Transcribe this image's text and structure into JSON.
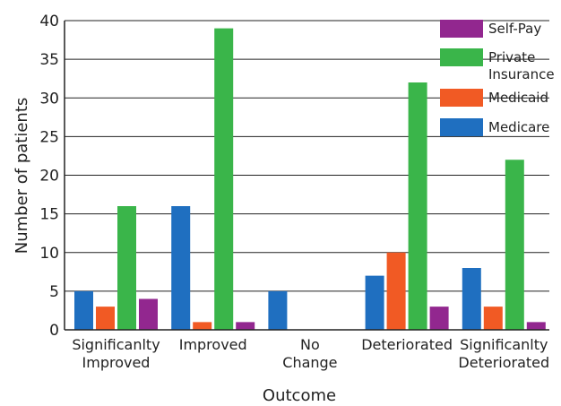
{
  "chart_data": {
    "type": "bar",
    "title": "",
    "xlabel": "Outcome",
    "ylabel": "Number of patients",
    "ylim": [
      0,
      40
    ],
    "yticks": [
      0,
      5,
      10,
      15,
      20,
      25,
      30,
      35,
      40
    ],
    "grid": "horizontal",
    "legend_position": "top-right",
    "categories": [
      [
        "Significanlty",
        "Improved"
      ],
      [
        "Improved"
      ],
      [
        "No",
        "Change"
      ],
      [
        "Deteriorated"
      ],
      [
        "Significanlty",
        "Deteriorated"
      ]
    ],
    "series": [
      {
        "name": "Medicare",
        "color": "#1f6fc0",
        "values": [
          5,
          16,
          5,
          7,
          8
        ]
      },
      {
        "name": "Medicaid",
        "color": "#f15a24",
        "values": [
          3,
          1,
          0,
          10,
          3
        ]
      },
      {
        "name": "Private Insurance",
        "legend_lines": [
          "Private",
          "Insurance"
        ],
        "color": "#3ab54a",
        "values": [
          16,
          39,
          0,
          32,
          22
        ]
      },
      {
        "name": "Self-Pay",
        "color": "#92278f",
        "values": [
          4,
          1,
          0,
          3,
          1
        ]
      }
    ],
    "legend_order": [
      "Self-Pay",
      "Private Insurance",
      "Medicaid",
      "Medicare"
    ]
  }
}
